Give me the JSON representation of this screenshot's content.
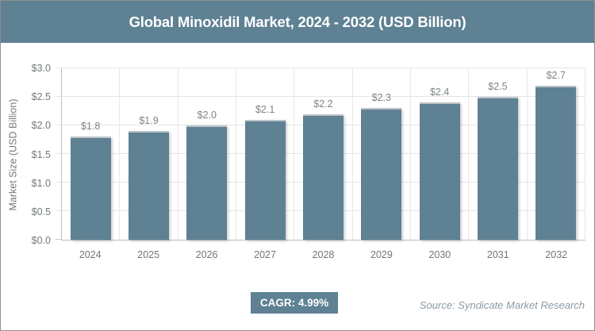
{
  "page": {
    "title": "Global Minoxidil Market, 2024 - 2032 (USD Billion)",
    "cagr_label": "CAGR: 4.99%",
    "source": "Source: Syndicate Market Research"
  },
  "colors": {
    "accent": "#5e8193",
    "gridline": "#e5e5e5",
    "axis_line": "#bdbdbd",
    "tick_text": "#73797c",
    "source_text": "#8c9aa4"
  },
  "chart_data": {
    "type": "bar",
    "title": "Global Minoxidil Market, 2024 - 2032 (USD Billion)",
    "categories": [
      "2024",
      "2025",
      "2026",
      "2027",
      "2028",
      "2029",
      "2030",
      "2031",
      "2032"
    ],
    "values": [
      1.8,
      1.9,
      2.0,
      2.1,
      2.2,
      2.3,
      2.4,
      2.5,
      2.7
    ],
    "bar_labels": [
      "$1.8",
      "$1.9",
      "$2.0",
      "$2.1",
      "$2.2",
      "$2.3",
      "$2.4",
      "$2.5",
      "$2.7"
    ],
    "xlabel": "",
    "ylabel": "Market Size (USD Billion)",
    "ylim": [
      0,
      3.0
    ],
    "ytick_step": 0.5,
    "ytick_labels": [
      "$0.0",
      "$0.5",
      "$1.0",
      "$1.5",
      "$2.0",
      "$2.5",
      "$3.0"
    ],
    "grid": true,
    "legend": "none",
    "bar_color": "#5e8193",
    "cagr": "4.99%"
  }
}
